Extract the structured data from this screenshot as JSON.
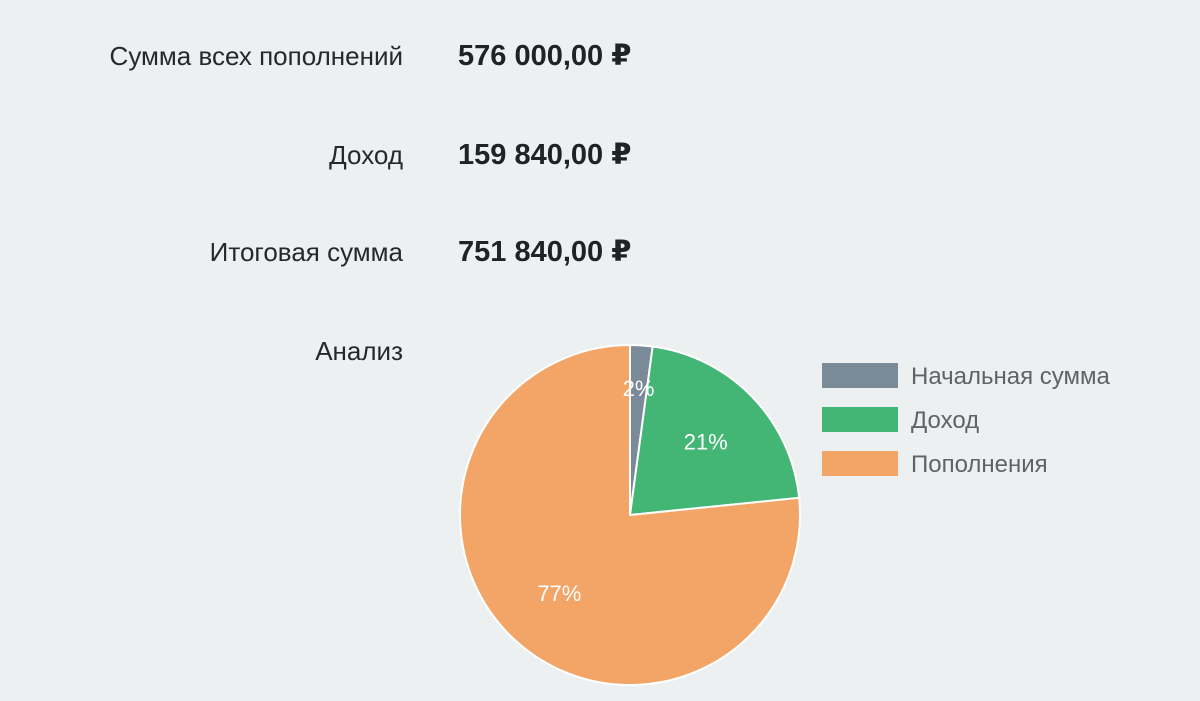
{
  "summary": {
    "deposits": {
      "label": "Сумма всех пополнений",
      "value": "576 000,00 ₽"
    },
    "income": {
      "label": "Доход",
      "value": "159 840,00 ₽"
    },
    "total": {
      "label": "Итоговая сумма",
      "value": "751 840,00 ₽"
    },
    "analysis_label": "Анализ"
  },
  "chart_data": {
    "type": "pie",
    "categories": [
      "Начальная сумма",
      "Доход",
      "Пополнения"
    ],
    "values": [
      16000,
      159840,
      576000
    ],
    "percent_labels": [
      "2%",
      "21%",
      "77%"
    ],
    "colors": [
      "#7b8a99",
      "#43b574",
      "#f2a566"
    ],
    "legend_placement": "right"
  }
}
